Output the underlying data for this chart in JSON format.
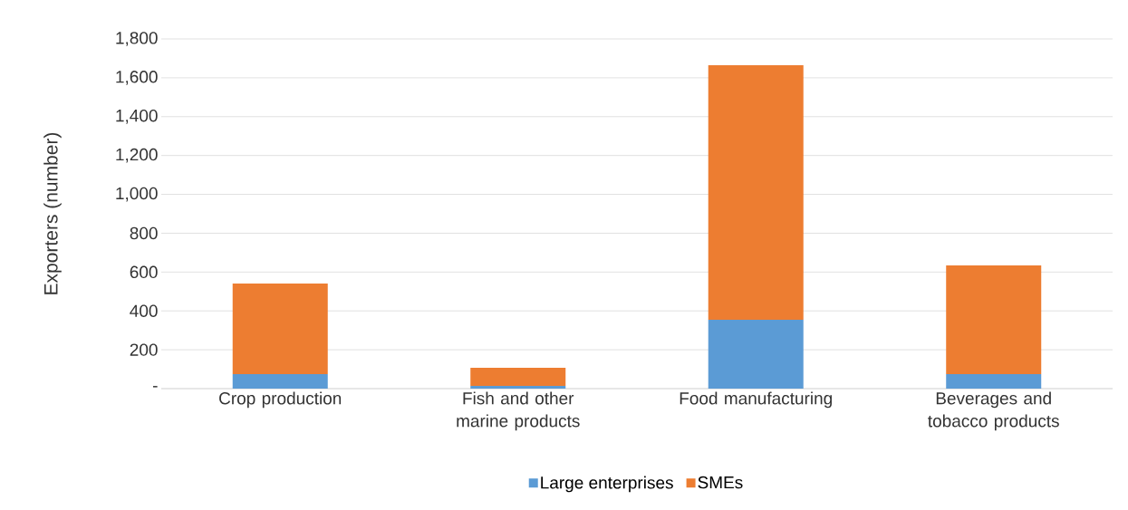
{
  "chart_data": {
    "type": "bar",
    "stacked": true,
    "ylabel": "Exporters (number)",
    "categories": [
      "Crop production",
      "Fish and other marine products",
      "Food manufacturing",
      "Beverages and tobacco products"
    ],
    "series": [
      {
        "name": "Large enterprises",
        "color": "#5b9bd5",
        "values": [
          75,
          14,
          354,
          75
        ]
      },
      {
        "name": "SMEs",
        "color": "#ed7d31",
        "values": [
          466,
          93,
          1311,
          559
        ]
      }
    ],
    "ylim": [
      0,
      1800
    ],
    "yticks": [
      {
        "value": 0,
        "label": "-"
      },
      {
        "value": 200,
        "label": "200"
      },
      {
        "value": 400,
        "label": "400"
      },
      {
        "value": 600,
        "label": "600"
      },
      {
        "value": 800,
        "label": "800"
      },
      {
        "value": 1000,
        "label": "1,000"
      },
      {
        "value": 1200,
        "label": "1,200"
      },
      {
        "value": 1400,
        "label": "1,400"
      },
      {
        "value": 1600,
        "label": "1,600"
      },
      {
        "value": 1800,
        "label": "1,800"
      }
    ],
    "grid": "y",
    "legend": "bottom"
  }
}
